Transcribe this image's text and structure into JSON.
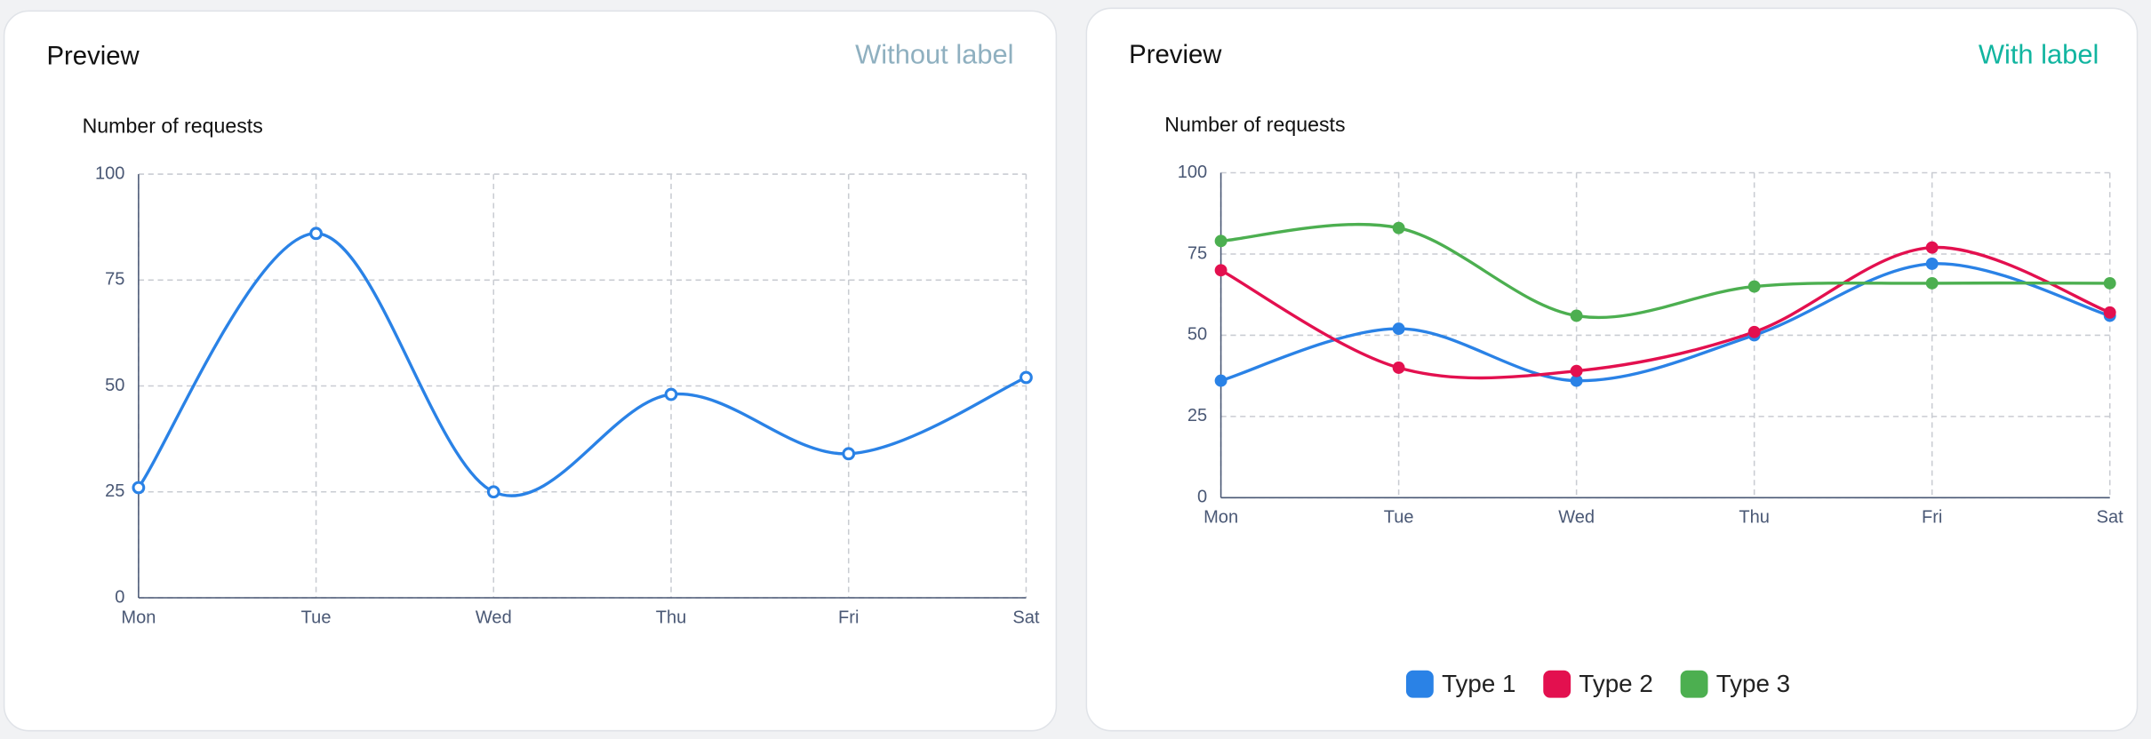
{
  "cards": [
    {
      "header": "Preview",
      "badge": "Without label"
    },
    {
      "header": "Preview",
      "badge": "With label"
    }
  ],
  "chart_data": [
    {
      "type": "line",
      "title": "Number of requests",
      "categories": [
        "Mon",
        "Tue",
        "Wed",
        "Thu",
        "Fri",
        "Sat"
      ],
      "values": [
        26,
        86,
        25,
        48,
        34,
        52
      ],
      "color": "#2a82e6",
      "markers": "hollow",
      "ylim": [
        0,
        100
      ],
      "yticks": [
        0,
        25,
        50,
        75,
        100
      ],
      "grid": true
    },
    {
      "type": "line",
      "title": "Number of requests",
      "categories": [
        "Mon",
        "Tue",
        "Wed",
        "Thu",
        "Fri",
        "Sat"
      ],
      "series": [
        {
          "name": "Type 1",
          "color": "#2a82e6",
          "values": [
            36,
            52,
            36,
            50,
            72,
            56
          ]
        },
        {
          "name": "Type 2",
          "color": "#e3104f",
          "values": [
            70,
            40,
            39,
            51,
            77,
            57
          ]
        },
        {
          "name": "Type 3",
          "color": "#4caf50",
          "values": [
            79,
            83,
            56,
            65,
            66,
            66
          ]
        }
      ],
      "markers": "filled",
      "legend": "bottom",
      "ylim": [
        0,
        100
      ],
      "yticks": [
        0,
        25,
        50,
        75,
        100
      ],
      "grid": true
    }
  ]
}
